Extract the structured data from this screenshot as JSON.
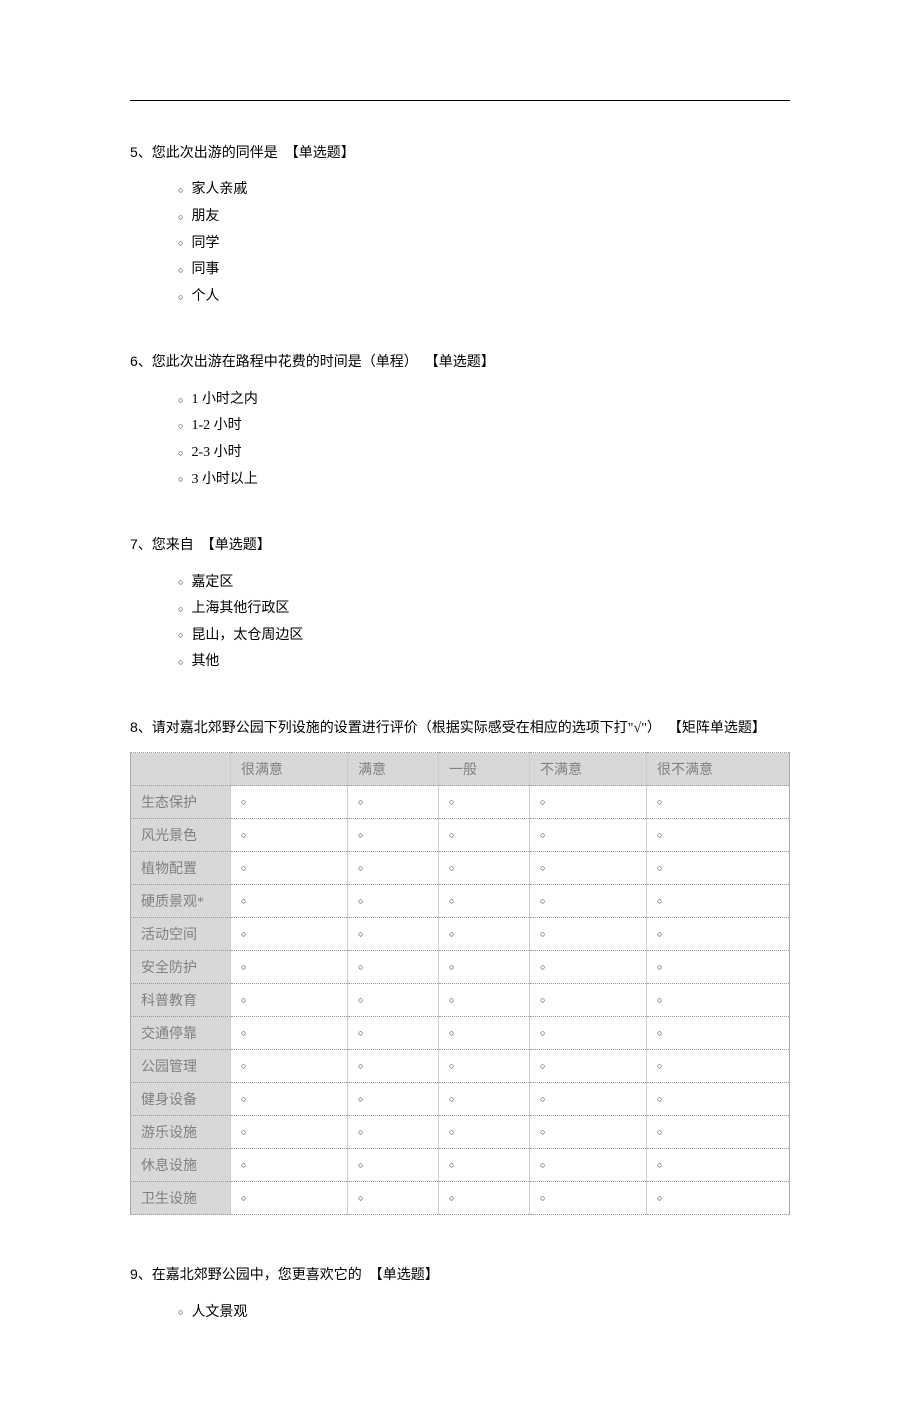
{
  "colors": {
    "page_bg": "#ffffff",
    "text": "#000000",
    "header_bg": "#d8d8d8",
    "header_text": "#808080",
    "border_dotted": "#999999",
    "border_solid": "#cccccc"
  },
  "typography": {
    "body_font": "SimSun",
    "number_font": "Arial",
    "base_size_pt": 11,
    "circle_size_pt": 7
  },
  "questions": [
    {
      "number": "5、",
      "text": "您此次出游的同伴是",
      "type_label": "【单选题】",
      "options": [
        "家人亲戚",
        "朋友",
        "同学",
        "同事",
        "个人"
      ]
    },
    {
      "number": "6、",
      "text": "您此次出游在路程中花费的时间是（单程）",
      "type_label": "【单选题】",
      "options": [
        "1 小时之内",
        "1-2 小时",
        "2-3 小时",
        "3 小时以上"
      ]
    },
    {
      "number": "7、",
      "text": "您来自",
      "type_label": "【单选题】",
      "options": [
        "嘉定区",
        "上海其他行政区",
        "昆山，太仓周边区",
        "其他"
      ]
    },
    {
      "number": "8、",
      "text": "请对嘉北郊野公园下列设施的设置进行评价（根据实际感受在相应的选项下打\"√\"）",
      "type_label": "【矩阵单选题】",
      "matrix": {
        "columns": [
          "很满意",
          "满意",
          "一般",
          "不满意",
          "很不满意"
        ],
        "rows": [
          "生态保护",
          "风光景色",
          "植物配置",
          "硬质景观*",
          "活动空间",
          "安全防护",
          "科普教育",
          "交通停靠",
          "公园管理",
          "健身设备",
          "游乐设施",
          "休息设施",
          "卫生设施"
        ],
        "cell_marker": "○"
      }
    },
    {
      "number": "9、",
      "text": "在嘉北郊野公园中，您更喜欢它的",
      "type_label": "【单选题】",
      "options": [
        "人文景观"
      ]
    }
  ],
  "circle_marker": "○"
}
